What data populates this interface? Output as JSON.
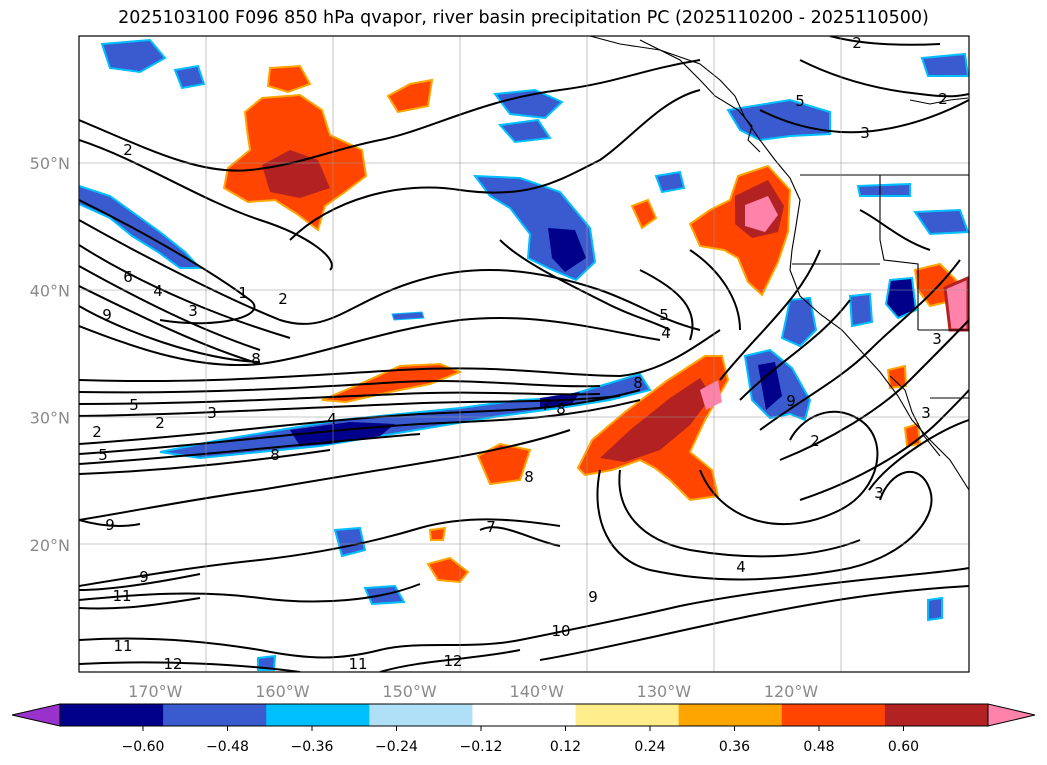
{
  "title": "2025103100 F096 850 hPa qvapor, river basin precipitation PC (2025110200 - 2025110500)",
  "map": {
    "lat_labels": [
      "50°N",
      "40°N",
      "30°N",
      "20°N"
    ],
    "lat_values": [
      50,
      40,
      30,
      20
    ],
    "lon_labels": [
      "170°W",
      "160°W",
      "150°W",
      "140°W",
      "130°W",
      "120°W"
    ],
    "lon_values": [
      -170,
      -160,
      -150,
      -140,
      -130,
      -120
    ],
    "extent": {
      "lon_min": -176,
      "lon_max": -106,
      "lat_min": 10,
      "lat_max": 60
    }
  },
  "contour_labels": [
    "2",
    "2",
    "6",
    "4",
    "9",
    "1",
    "2",
    "3",
    "8",
    "5",
    "3",
    "2",
    "2",
    "5",
    "4",
    "8",
    "8",
    "4",
    "5",
    "7",
    "8",
    "8",
    "2",
    "3",
    "4",
    "9",
    "9",
    "11",
    "11",
    "12",
    "11",
    "12",
    "10",
    "9",
    "7",
    "9",
    "3",
    "3",
    "3",
    "5",
    "2"
  ],
  "colorbar": {
    "tick_labels": [
      "−0.60",
      "−0.48",
      "−0.36",
      "−0.24",
      "−0.12",
      "0.12",
      "0.24",
      "0.36",
      "0.48",
      "0.60"
    ],
    "colors": [
      "#9932cc",
      "#00008b",
      "#3a5bd0",
      "#00bfff",
      "#b0e0f8",
      "#ffffff",
      "#ffec8b",
      "#ffa500",
      "#ff4500",
      "#b22222",
      "#ff82ab"
    ]
  }
}
